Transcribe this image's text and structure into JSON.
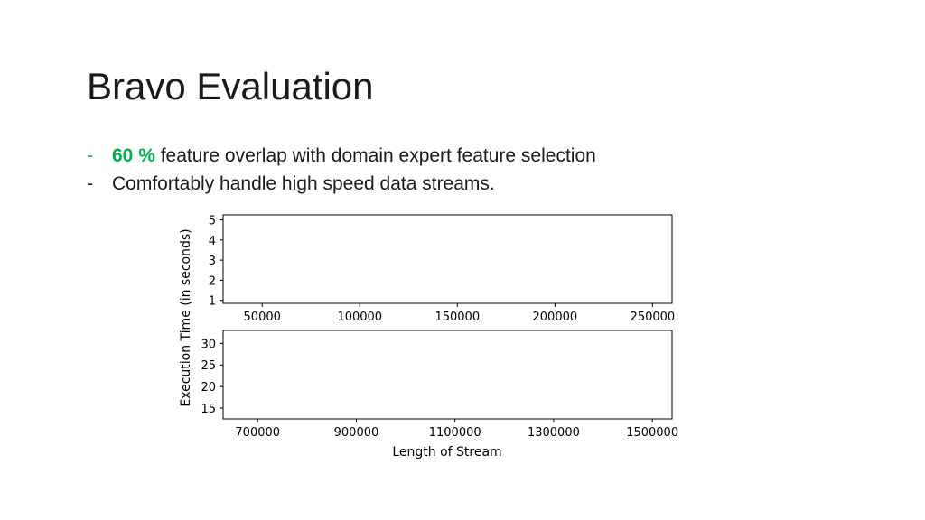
{
  "slide": {
    "title": "Bravo Evaluation",
    "bullets": [
      {
        "dash": "-",
        "highlight": "60 %",
        "text": " feature overlap with domain expert feature selection"
      },
      {
        "dash": "-",
        "highlight": "",
        "text": "Comfortably handle high speed data streams."
      }
    ],
    "accent_color": "#00b050"
  },
  "chart_data": [
    {
      "type": "line",
      "ylabel": "Execution Time (in seconds)",
      "xlabel": "",
      "xlim": [
        30000,
        260000
      ],
      "ylim": [
        0.85,
        5.25
      ],
      "xticks": [
        50000,
        100000,
        150000,
        200000,
        250000
      ],
      "yticks": [
        1,
        2,
        3,
        4,
        5
      ],
      "series": [],
      "grid": false
    },
    {
      "type": "line",
      "ylabel": "Execution Time (in seconds)",
      "xlabel": "Length of Stream",
      "xlim": [
        630000,
        1540000
      ],
      "ylim": [
        12.5,
        33
      ],
      "xticks": [
        700000,
        900000,
        1100000,
        1300000,
        1500000
      ],
      "yticks": [
        15,
        20,
        25,
        30
      ],
      "series": [],
      "grid": false
    }
  ]
}
